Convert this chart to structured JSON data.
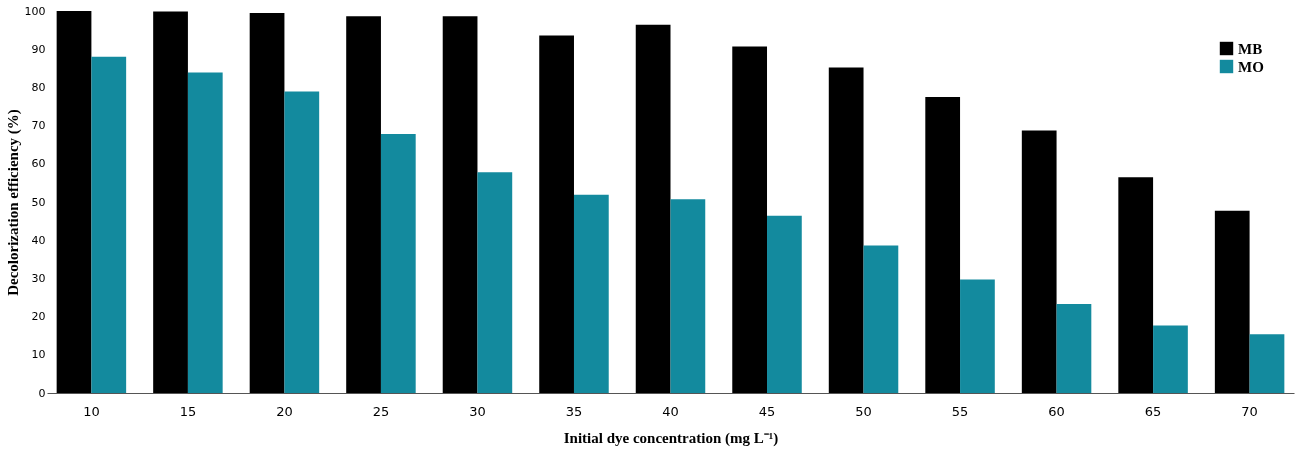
{
  "chart_data": {
    "type": "bar",
    "xlabel": "Initial dye concentration (mg L⁻¹)",
    "ylabel": "Decolorization efficiency (%)",
    "categories": [
      "10",
      "15",
      "20",
      "25",
      "30",
      "35",
      "40",
      "45",
      "50",
      "55",
      "60",
      "65",
      "70"
    ],
    "series": [
      {
        "name": "MB",
        "color": "#000000",
        "values": [
          100,
          99.9,
          99.5,
          98.6,
          98.6,
          93.6,
          96.4,
          90.7,
          85.2,
          77.5,
          68.7,
          56.5,
          47.7
        ]
      },
      {
        "name": "MO",
        "color": "#138a9e",
        "values": [
          88,
          83.9,
          78.9,
          67.8,
          57.8,
          51.9,
          50.7,
          46.4,
          38.6,
          29.7,
          23.3,
          17.7,
          15.4
        ]
      }
    ],
    "ylim": [
      0,
      100
    ],
    "yticks": [
      0,
      10,
      20,
      30,
      40,
      50,
      60,
      70,
      80,
      90,
      100
    ],
    "grid": false,
    "legend": "top right"
  }
}
